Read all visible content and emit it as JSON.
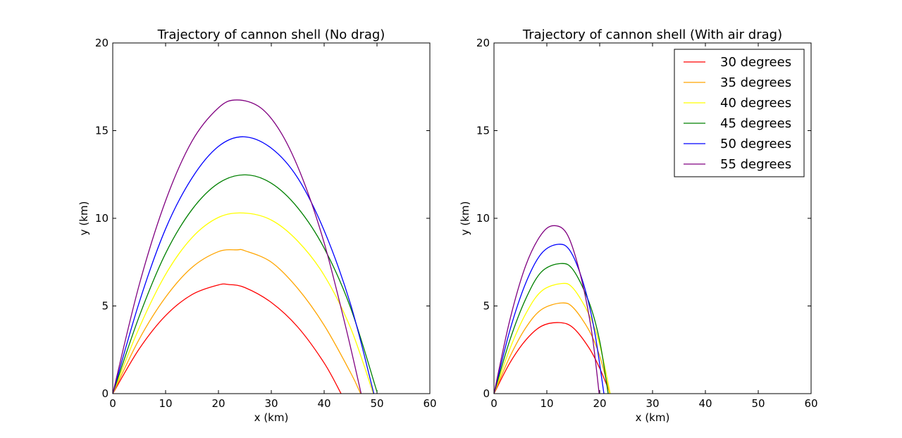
{
  "chart_data": [
    {
      "type": "line",
      "title": "Trajectory of cannon shell (No drag)",
      "xlabel": "x (km)",
      "ylabel": "y (km)",
      "xlim": [
        0,
        60
      ],
      "ylim": [
        0,
        20
      ],
      "xticks": [
        "0",
        "10",
        "20",
        "30",
        "40",
        "50",
        "60"
      ],
      "yticks": [
        "0",
        "5",
        "10",
        "15",
        "20"
      ],
      "grid": false,
      "legend": false,
      "series": [
        {
          "name": "30 degrees",
          "color": "#ff0000",
          "points": [
            [
              0,
              0
            ],
            [
              5,
              2.55
            ],
            [
              10,
              4.45
            ],
            [
              15,
              5.65
            ],
            [
              20,
              6.2
            ],
            [
              22,
              6.22
            ],
            [
              25,
              6.05
            ],
            [
              30,
              5.2
            ],
            [
              35,
              3.8
            ],
            [
              40,
              1.75
            ],
            [
              43.2,
              0
            ]
          ]
        },
        {
          "name": "35 degrees",
          "color": "#ffa500",
          "points": [
            [
              0,
              0
            ],
            [
              5,
              3.1
            ],
            [
              10,
              5.5
            ],
            [
              15,
              7.2
            ],
            [
              20,
              8.1
            ],
            [
              23.5,
              8.2
            ],
            [
              25,
              8.15
            ],
            [
              30,
              7.5
            ],
            [
              35,
              6.0
            ],
            [
              40,
              3.9
            ],
            [
              45,
              1.2
            ],
            [
              46.9,
              0
            ]
          ]
        },
        {
          "name": "40 degrees",
          "color": "#ffff00",
          "points": [
            [
              0,
              0
            ],
            [
              5,
              3.75
            ],
            [
              10,
              6.8
            ],
            [
              15,
              8.9
            ],
            [
              20,
              10.05
            ],
            [
              24.8,
              10.3
            ],
            [
              30,
              9.9
            ],
            [
              35,
              8.7
            ],
            [
              40,
              6.75
            ],
            [
              45,
              3.75
            ],
            [
              49.3,
              0
            ]
          ]
        },
        {
          "name": "45 degrees",
          "color": "#008000",
          "points": [
            [
              0,
              0
            ],
            [
              5,
              4.4
            ],
            [
              10,
              8.0
            ],
            [
              15,
              10.5
            ],
            [
              20,
              12.0
            ],
            [
              25,
              12.48
            ],
            [
              30,
              12.0
            ],
            [
              35,
              10.6
            ],
            [
              40,
              8.3
            ],
            [
              45,
              4.9
            ],
            [
              50,
              0.1
            ]
          ]
        },
        {
          "name": "50 degrees",
          "color": "#0000ff",
          "points": [
            [
              0,
              0
            ],
            [
              5,
              5.2
            ],
            [
              10,
              9.4
            ],
            [
              15,
              12.3
            ],
            [
              20,
              14.1
            ],
            [
              24.8,
              14.65
            ],
            [
              30,
              14.0
            ],
            [
              35,
              12.3
            ],
            [
              40,
              9.3
            ],
            [
              45,
              5.1
            ],
            [
              49.4,
              0
            ]
          ]
        },
        {
          "name": "55 degrees",
          "color": "#800080",
          "points": [
            [
              0,
              0
            ],
            [
              5,
              6.2
            ],
            [
              10,
              11.0
            ],
            [
              15,
              14.4
            ],
            [
              20,
              16.3
            ],
            [
              23.5,
              16.75
            ],
            [
              28,
              16.3
            ],
            [
              32,
              14.8
            ],
            [
              36,
              12.2
            ],
            [
              40,
              8.6
            ],
            [
              44,
              3.9
            ],
            [
              47.0,
              0
            ]
          ]
        }
      ]
    },
    {
      "type": "line",
      "title": "Trajectory of cannon shell (With air drag)",
      "xlabel": "x (km)",
      "ylabel": "y (km)",
      "xlim": [
        0,
        60
      ],
      "ylim": [
        0,
        20
      ],
      "xticks": [
        "0",
        "10",
        "20",
        "30",
        "40",
        "50",
        "60"
      ],
      "yticks": [
        "0",
        "5",
        "10",
        "15",
        "20"
      ],
      "grid": false,
      "legend": "top-right",
      "series": [
        {
          "name": "30 degrees",
          "color": "#ff0000",
          "points": [
            [
              0,
              0
            ],
            [
              3,
              1.75
            ],
            [
              6,
              3.05
            ],
            [
              9,
              3.85
            ],
            [
              12.4,
              4.05
            ],
            [
              15,
              3.75
            ],
            [
              18,
              2.6
            ],
            [
              20,
              1.45
            ],
            [
              22,
              0
            ]
          ]
        },
        {
          "name": "35 degrees",
          "color": "#ffa500",
          "points": [
            [
              0,
              0
            ],
            [
              3,
              2.1
            ],
            [
              6,
              3.75
            ],
            [
              9,
              4.8
            ],
            [
              12.8,
              5.17
            ],
            [
              15,
              4.9
            ],
            [
              18,
              3.6
            ],
            [
              20,
              2.15
            ],
            [
              21.9,
              0
            ]
          ]
        },
        {
          "name": "40 degrees",
          "color": "#ffff00",
          "points": [
            [
              0,
              0
            ],
            [
              3,
              2.55
            ],
            [
              6,
              4.55
            ],
            [
              9,
              5.85
            ],
            [
              12.8,
              6.28
            ],
            [
              15,
              6.0
            ],
            [
              18,
              4.5
            ],
            [
              20,
              2.8
            ],
            [
              22.0,
              0
            ]
          ]
        },
        {
          "name": "45 degrees",
          "color": "#008000",
          "points": [
            [
              0,
              0
            ],
            [
              3,
              3.05
            ],
            [
              6,
              5.4
            ],
            [
              9,
              6.95
            ],
            [
              12.6,
              7.42
            ],
            [
              15,
              7.05
            ],
            [
              18,
              5.2
            ],
            [
              20,
              3.0
            ],
            [
              21.6,
              0
            ]
          ]
        },
        {
          "name": "50 degrees",
          "color": "#0000ff",
          "points": [
            [
              0,
              0
            ],
            [
              3,
              3.6
            ],
            [
              6,
              6.3
            ],
            [
              9,
              8.0
            ],
            [
              12.2,
              8.52
            ],
            [
              14.5,
              8.1
            ],
            [
              17,
              6.2
            ],
            [
              19,
              3.6
            ],
            [
              20.8,
              0
            ]
          ]
        },
        {
          "name": "55 degrees",
          "color": "#800080",
          "points": [
            [
              0,
              0
            ],
            [
              3,
              4.2
            ],
            [
              6,
              7.3
            ],
            [
              9,
              9.1
            ],
            [
              11.5,
              9.58
            ],
            [
              14,
              9.0
            ],
            [
              16.5,
              6.6
            ],
            [
              18.5,
              3.5
            ],
            [
              19.9,
              0
            ]
          ]
        }
      ]
    }
  ]
}
